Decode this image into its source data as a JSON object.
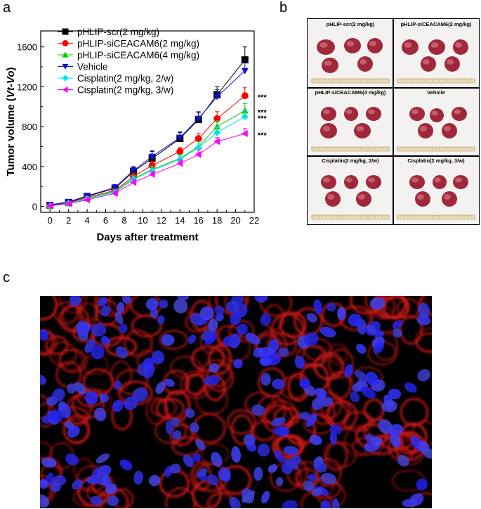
{
  "figure": {
    "panel_labels": [
      "a",
      "b",
      "c"
    ]
  },
  "chart_data": {
    "type": "line",
    "xlabel": "Days after treatment",
    "ylabel_main": "Tumor volume (",
    "ylabel_italic": "Vt-Vo",
    "ylabel_end": ")",
    "xlim": [
      -1,
      22
    ],
    "ylim": [
      -60,
      1760
    ],
    "xticks": [
      0,
      2,
      4,
      6,
      8,
      10,
      12,
      14,
      16,
      18,
      20,
      22
    ],
    "yticks": [
      0,
      400,
      800,
      1200,
      1600
    ],
    "x": [
      0,
      2,
      4,
      7,
      9,
      11,
      14,
      16,
      18,
      21
    ],
    "legend_position": "top-left",
    "series": [
      {
        "name": "pHLIP-scr(2 mg/kg)",
        "color": "#000000",
        "marker": "square",
        "values": [
          10,
          40,
          100,
          180,
          350,
          480,
          680,
          870,
          1120,
          1470
        ],
        "errors": [
          15,
          15,
          20,
          30,
          40,
          70,
          60,
          70,
          80,
          130
        ]
      },
      {
        "name": "pHLIP-siCEACAM6(2 mg/kg)",
        "color": "#ff0000",
        "marker": "circle",
        "values": [
          5,
          35,
          90,
          160,
          300,
          410,
          550,
          680,
          880,
          1110
        ],
        "errors": [
          15,
          15,
          20,
          25,
          35,
          40,
          40,
          50,
          70,
          80
        ]
      },
      {
        "name": "pHLIP-siCEACAM6(4 mg/kg)",
        "color": "#00cc00",
        "marker": "triangle-up",
        "values": [
          5,
          30,
          80,
          150,
          280,
          370,
          480,
          600,
          800,
          960
        ],
        "errors": [
          15,
          15,
          20,
          25,
          30,
          35,
          40,
          50,
          60,
          70
        ]
      },
      {
        "name": "Vehicle",
        "color": "#1010d8",
        "marker": "triangle-down",
        "values": [
          15,
          45,
          105,
          190,
          360,
          500,
          690,
          880,
          1100,
          1360
        ],
        "errors": [
          15,
          20,
          25,
          30,
          40,
          60,
          60,
          70,
          70,
          80
        ]
      },
      {
        "name": "Cisplatin(2 mg/kg, 2/w)",
        "color": "#00e5e5",
        "marker": "diamond",
        "values": [
          5,
          30,
          75,
          140,
          270,
          360,
          470,
          590,
          740,
          900
        ],
        "errors": [
          15,
          15,
          20,
          25,
          30,
          35,
          40,
          45,
          50,
          60
        ]
      },
      {
        "name": "Cisplatin(2 mg/kg, 3/w)",
        "color": "#ff00ff",
        "marker": "triangle-left",
        "values": [
          5,
          25,
          65,
          130,
          240,
          320,
          430,
          520,
          650,
          730
        ],
        "errors": [
          15,
          15,
          20,
          25,
          30,
          30,
          35,
          45,
          40,
          50
        ]
      }
    ],
    "annotations": [
      {
        "text": "***",
        "x": 21,
        "y": 1110
      },
      {
        "text": "***",
        "x": 21,
        "y": 960
      },
      {
        "text": "***",
        "x": 21,
        "y": 900
      },
      {
        "text": "***",
        "x": 21,
        "y": 730
      }
    ]
  },
  "photo_panel": {
    "cells": [
      {
        "caption": "pHLIP-scr(2 mg/kg)"
      },
      {
        "caption": "pHLIP-siCEACAM6(2 mg/kg)"
      },
      {
        "caption": "pHLIP-siCEACAM6(4 mg/kg)"
      },
      {
        "caption": "Vehicle"
      },
      {
        "caption": "Cisplatin(2 mg/kg, 2/w)"
      },
      {
        "caption": "Cisplatin(2 mg/kg, 3/w)"
      }
    ],
    "tumor_color": "#a0283a",
    "ruler_color": "#b08a3a"
  },
  "micrograph": {
    "nucleus_color": "#2a2aff",
    "membrane_color": "#d01818"
  }
}
